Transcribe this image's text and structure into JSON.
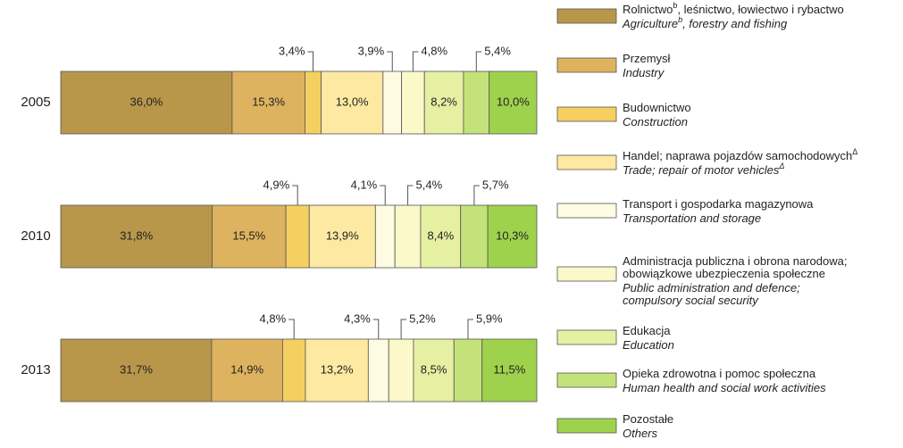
{
  "chart_data": {
    "type": "bar",
    "orientation": "horizontal",
    "stacked": true,
    "categories": [
      "2005",
      "2010",
      "2013"
    ],
    "xlim": [
      0,
      100
    ],
    "series": [
      {
        "name": [
          [
            "Rolnictwo",
            "b",
            ", leśnictwo, łowiectwo i rybactwo"
          ]
        ],
        "name_en": [
          [
            "Agriculture",
            "b",
            ", forestry and fishing"
          ]
        ],
        "color": "#b8974a",
        "values": [
          36.0,
          31.8,
          31.7
        ],
        "value_labels": [
          "36,0%",
          "31,8%",
          "31,7%"
        ]
      },
      {
        "name": [
          [
            "Przemysł"
          ]
        ],
        "name_en": [
          [
            "Industry"
          ]
        ],
        "color": "#deb35f",
        "values": [
          15.3,
          15.5,
          14.9
        ],
        "value_labels": [
          "15,3%",
          "15,5%",
          "14,9%"
        ]
      },
      {
        "name": [
          [
            "Budownictwo"
          ]
        ],
        "name_en": [
          [
            "Construction"
          ]
        ],
        "color": "#f5d061",
        "values": [
          3.4,
          4.9,
          4.8
        ],
        "value_labels": [
          "3,4%",
          "4,9%",
          "4,8%"
        ]
      },
      {
        "name": [
          [
            "Handel; naprawa pojazdów samochodowych",
            "Δ"
          ]
        ],
        "name_en": [
          [
            "Trade; repair of motor vehicles",
            "Δ"
          ]
        ],
        "color": "#fde9a2",
        "values": [
          13.0,
          13.9,
          13.2
        ],
        "value_labels": [
          "13,0%",
          "13,9%",
          "13,2%"
        ]
      },
      {
        "name": [
          [
            "Transport i gospodarka magazynowa"
          ]
        ],
        "name_en": [
          [
            "Transportation and storage"
          ]
        ],
        "color": "#fefbe3",
        "values": [
          3.9,
          4.1,
          4.3
        ],
        "value_labels": [
          "3,9%",
          "4,1%",
          "4,3%"
        ]
      },
      {
        "name": [
          [
            "Administracja publiczna i obrona narodowa;"
          ],
          [
            "  obowiązkowe ubezpieczenia społeczne"
          ]
        ],
        "name_en": [
          [
            "Public administration and defence;"
          ],
          [
            "  compulsory social security"
          ]
        ],
        "color": "#fbf8c9",
        "values": [
          4.8,
          5.4,
          5.2
        ],
        "value_labels": [
          "4,8%",
          "5,4%",
          "5,2%"
        ]
      },
      {
        "name": [
          [
            "Edukacja"
          ]
        ],
        "name_en": [
          [
            "Education"
          ]
        ],
        "color": "#e6f0a3",
        "values": [
          8.2,
          8.4,
          8.5
        ],
        "value_labels": [
          "8,2%",
          "8,4%",
          "8,5%"
        ]
      },
      {
        "name": [
          [
            "Opieka zdrowotna i pomoc społeczna"
          ]
        ],
        "name_en": [
          [
            "Human health and social work activities"
          ]
        ],
        "color": "#c3e37a",
        "values": [
          5.4,
          5.7,
          5.9
        ],
        "value_labels": [
          "5,4%",
          "5,7%",
          "5,9%"
        ]
      },
      {
        "name": [
          [
            "Pozostałe"
          ]
        ],
        "name_en": [
          [
            "Others"
          ]
        ],
        "color": "#9fd24c",
        "values": [
          10.0,
          10.3,
          11.5
        ],
        "value_labels": [
          "10,0%",
          "10,3%",
          "11,5%"
        ]
      }
    ]
  }
}
